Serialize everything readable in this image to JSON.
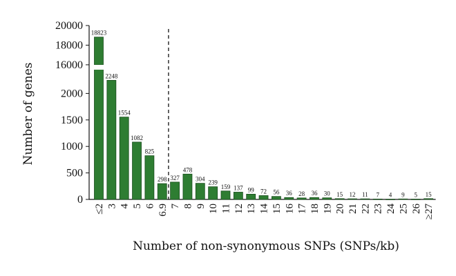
{
  "chart_data": {
    "type": "bar",
    "xlabel": "Number of non-synonymous SNPs (SNPs/kb)",
    "ylabel": "Number of genes",
    "categories": [
      "≤2",
      "3",
      "4",
      "5",
      "6",
      "6.9",
      "7",
      "8",
      "9",
      "10",
      "11",
      "12",
      "13",
      "14",
      "15",
      "16",
      "17",
      "18",
      "19",
      "20",
      "21",
      "22",
      "23",
      "24",
      "25",
      "26",
      "≥27"
    ],
    "values": [
      18823,
      2248,
      1554,
      1082,
      825,
      298,
      327,
      478,
      304,
      239,
      159,
      137,
      99,
      72,
      56,
      36,
      28,
      36,
      30,
      15,
      12,
      11,
      7,
      4,
      9,
      5,
      15
    ],
    "data_labels": [
      "18823",
      "2248",
      "1554",
      "1082",
      "825",
      "298",
      "327",
      "478",
      "304",
      "239",
      "159",
      "137",
      "99",
      "72",
      "56",
      "36",
      "28",
      "36",
      "30",
      "15",
      "12",
      "11",
      "7",
      "4",
      "9",
      "5",
      "15"
    ],
    "y_axis": {
      "broken": true,
      "lower_range": [
        0,
        2500
      ],
      "upper_range": [
        15500,
        20000
      ],
      "lower_ticks": [
        0,
        500,
        1000,
        1500,
        2000
      ],
      "lower_tick_labels": [
        "0",
        "500",
        "1000",
        "1500",
        "2000"
      ],
      "upper_ticks": [
        16000,
        18000,
        20000
      ],
      "upper_tick_labels": [
        "16000",
        "18000",
        "20000"
      ]
    },
    "threshold_line": {
      "between": [
        "6.9",
        "7"
      ],
      "style": "dashed"
    },
    "grid": false,
    "legend": "none",
    "bar_color": "#2e7d32"
  }
}
